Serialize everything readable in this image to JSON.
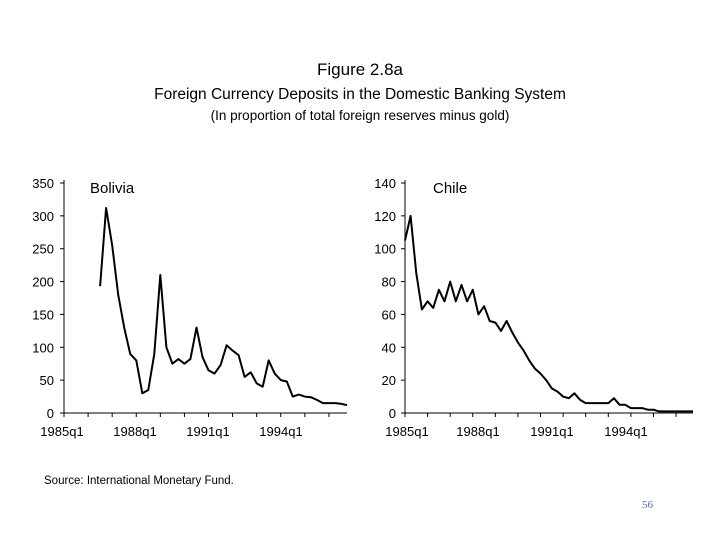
{
  "figure": {
    "title": "Figure 2.8a",
    "subtitle": "Foreign Currency Deposits in the Domestic Banking System",
    "note": "(In proportion of total foreign reserves minus gold)"
  },
  "source": "Source: International Monetary Fund.",
  "page_number": "56",
  "chart_data": [
    {
      "type": "line",
      "name": "Bolivia",
      "ylim": [
        0,
        350
      ],
      "yticks": [
        "0",
        "50",
        "100",
        "150",
        "200",
        "250",
        "300",
        "350"
      ],
      "xticks": [
        "1985q1",
        "1988q1",
        "1991q1",
        "1994q1"
      ],
      "xlim": [
        1985.0,
        1996.75
      ],
      "x": [
        1986.5,
        1986.75,
        1987,
        1987.25,
        1987.5,
        1987.75,
        1988,
        1988.25,
        1988.5,
        1988.75,
        1989,
        1989.25,
        1989.5,
        1989.75,
        1990,
        1990.25,
        1990.5,
        1990.75,
        1991,
        1991.25,
        1991.5,
        1991.75,
        1992,
        1992.25,
        1992.5,
        1992.75,
        1993,
        1993.25,
        1993.5,
        1993.75,
        1994,
        1994.25,
        1994.5,
        1994.75,
        1995,
        1995.25,
        1995.5,
        1995.75,
        1996,
        1996.25,
        1996.5,
        1996.75
      ],
      "y": [
        193,
        312,
        255,
        180,
        130,
        90,
        80,
        30,
        35,
        90,
        210,
        100,
        75,
        82,
        75,
        82,
        130,
        85,
        65,
        60,
        73,
        103,
        95,
        88,
        55,
        62,
        45,
        40,
        80,
        60,
        50,
        48,
        25,
        28,
        25,
        24,
        20,
        15,
        15,
        15,
        14,
        12
      ],
      "grid": false
    },
    {
      "type": "line",
      "name": "Chile",
      "ylim": [
        0,
        140
      ],
      "yticks": [
        "0",
        "20",
        "40",
        "60",
        "80",
        "100",
        "120",
        "140"
      ],
      "xticks": [
        "1985q1",
        "1988q1",
        "1991q1",
        "1994q1"
      ],
      "xlim": [
        1985.0,
        1997.75
      ],
      "x": [
        1985,
        1985.25,
        1985.5,
        1985.75,
        1986,
        1986.25,
        1986.5,
        1986.75,
        1987,
        1987.25,
        1987.5,
        1987.75,
        1988,
        1988.25,
        1988.5,
        1988.75,
        1989,
        1989.25,
        1989.5,
        1989.75,
        1990,
        1990.25,
        1990.5,
        1990.75,
        1991,
        1991.25,
        1991.5,
        1991.75,
        1992,
        1992.25,
        1992.5,
        1992.75,
        1993,
        1993.25,
        1993.5,
        1993.75,
        1994,
        1994.25,
        1994.5,
        1994.75,
        1995,
        1995.25,
        1995.5,
        1995.75,
        1996,
        1996.25,
        1996.5,
        1996.75,
        1997,
        1997.25,
        1997.5,
        1997.75
      ],
      "y": [
        105,
        120,
        85,
        63,
        68,
        64,
        75,
        68,
        80,
        68,
        78,
        68,
        75,
        60,
        65,
        56,
        55,
        50,
        56,
        49,
        43,
        38,
        32,
        27,
        24,
        20,
        15,
        13,
        10,
        9,
        12,
        8,
        6,
        6,
        6,
        6,
        6,
        9,
        5,
        5,
        3,
        3,
        3,
        2,
        2,
        1,
        1,
        1,
        1,
        1,
        1,
        1
      ],
      "grid": false
    }
  ]
}
